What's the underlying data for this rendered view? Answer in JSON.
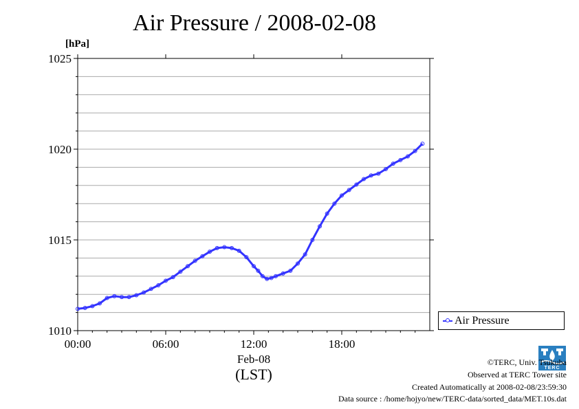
{
  "title": "Air Pressure / 2008-02-08",
  "chart_data": {
    "type": "line",
    "ylabel": "[hPa]",
    "xlabel_date": "Feb-08",
    "xlabel_tz": "(LST)",
    "xlim": [
      0,
      24
    ],
    "ylim": [
      1010,
      1025
    ],
    "x_ticks": [
      {
        "value": 0,
        "label": "00:00"
      },
      {
        "value": 6,
        "label": "06:00"
      },
      {
        "value": 12,
        "label": "12:00"
      },
      {
        "value": 18,
        "label": "18:00"
      }
    ],
    "y_ticks": [
      {
        "value": 1010,
        "label": "1010"
      },
      {
        "value": 1015,
        "label": "1015"
      },
      {
        "value": 1020,
        "label": "1020"
      },
      {
        "value": 1025,
        "label": "1025"
      }
    ],
    "grid": true,
    "legend_position": "lower-right-outside",
    "series": [
      {
        "name": "Air Pressure",
        "color": "#3333ff",
        "x": [
          0,
          0.5,
          1.0,
          1.5,
          2.0,
          2.5,
          3.0,
          3.5,
          4.0,
          4.5,
          5.0,
          5.5,
          6.0,
          6.5,
          7.0,
          7.5,
          8.0,
          8.5,
          9.0,
          9.5,
          10.0,
          10.5,
          11.0,
          11.5,
          12.0,
          12.3,
          12.6,
          12.9,
          13.2,
          13.5,
          14.0,
          14.5,
          15.0,
          15.5,
          16.0,
          16.5,
          17.0,
          17.5,
          18.0,
          18.5,
          19.0,
          19.5,
          20.0,
          20.5,
          21.0,
          21.5,
          22.0,
          22.5,
          23.0,
          23.5
        ],
        "y": [
          1011.2,
          1011.25,
          1011.35,
          1011.5,
          1011.8,
          1011.9,
          1011.85,
          1011.85,
          1011.95,
          1012.1,
          1012.3,
          1012.5,
          1012.75,
          1012.95,
          1013.25,
          1013.55,
          1013.85,
          1014.1,
          1014.35,
          1014.55,
          1014.6,
          1014.55,
          1014.4,
          1014.05,
          1013.55,
          1013.3,
          1013.0,
          1012.85,
          1012.9,
          1013.0,
          1013.15,
          1013.3,
          1013.7,
          1014.2,
          1015.0,
          1015.75,
          1016.45,
          1017.0,
          1017.45,
          1017.75,
          1018.05,
          1018.35,
          1018.55,
          1018.65,
          1018.9,
          1019.2,
          1019.4,
          1019.6,
          1019.9,
          1020.3
        ]
      }
    ]
  },
  "credits": {
    "copyright": "©TERC, Univ. Tsukuba",
    "observed": "Observed at TERC Tower site",
    "created": "Created Automatically at 2008-02-08/23:59:30",
    "source": "Data source : /home/hojyo/new/TERC-data/sorted_data/MET.10s.dat",
    "logo_text": "TERC"
  }
}
